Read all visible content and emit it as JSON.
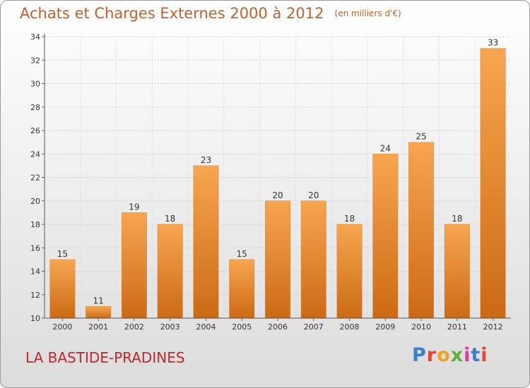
{
  "header": {
    "title": "Achats et Charges Externes 2000 à 2012",
    "unit": "(en milliers d'€)"
  },
  "footer": {
    "commune": "LA BASTIDE-PRADINES",
    "logo": "Proxiti",
    "logo_colors": [
      "#3a7fd0",
      "#e8452c",
      "#f2a51c",
      "#5ab23c",
      "#d83fa0",
      "#3a7fd0",
      "#e8452c"
    ]
  },
  "colors": {
    "bar_top": "#f7a550",
    "bar_bottom": "#cc6a14",
    "title": "#c0602a",
    "commune": "#c02828"
  },
  "chart_data": {
    "type": "bar",
    "title": "Achats et Charges Externes 2000 à 2012",
    "xlabel": "",
    "ylabel": "",
    "categories": [
      "2000",
      "2001",
      "2002",
      "2003",
      "2004",
      "2005",
      "2006",
      "2007",
      "2008",
      "2009",
      "2010",
      "2011",
      "2012"
    ],
    "values": [
      15,
      11,
      19,
      18,
      23,
      15,
      20,
      20,
      18,
      24,
      25,
      18,
      33
    ],
    "ylim": [
      10,
      34
    ],
    "yticks": [
      10,
      12,
      14,
      16,
      18,
      20,
      22,
      24,
      26,
      28,
      30,
      32,
      34
    ],
    "grid": true
  }
}
